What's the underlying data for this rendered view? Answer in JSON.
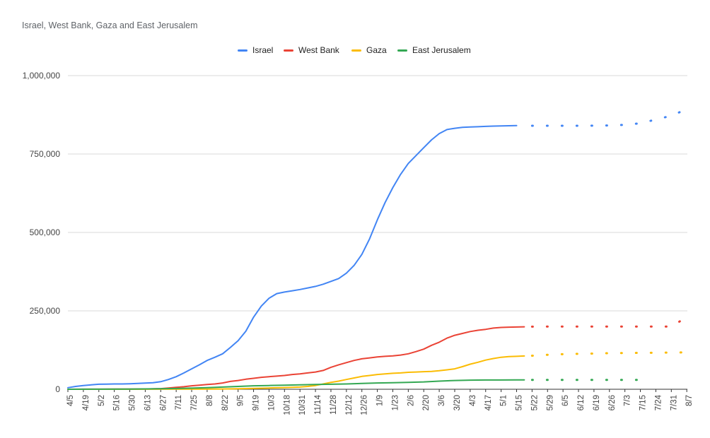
{
  "chart_data": {
    "type": "line",
    "title": "Israel, West Bank, Gaza and East Jerusalem",
    "ylim": [
      0,
      1000000
    ],
    "yticks": [
      "0",
      "250,000",
      "500,000",
      "750,000",
      "1,000,000"
    ],
    "ytick_values": [
      0,
      250000,
      500000,
      750000,
      1000000
    ],
    "grid": true,
    "legend_position": "top",
    "xticks": [
      "4/5",
      "4/19",
      "5/2",
      "5/16",
      "5/30",
      "6/13",
      "6/27",
      "7/11",
      "7/25",
      "8/8",
      "8/22",
      "9/5",
      "9/19",
      "10/3",
      "10/18",
      "10/31",
      "11/14",
      "11/28",
      "12/12",
      "12/26",
      "1/9",
      "1/23",
      "2/6",
      "2/20",
      "3/6",
      "3/20",
      "4/3",
      "4/17",
      "5/1",
      "5/15",
      "5/22",
      "5/29",
      "6/5",
      "6/12",
      "6/19",
      "6/26",
      "7/3",
      "7/15",
      "7/24",
      "7/31",
      "8/7"
    ],
    "series": [
      {
        "name": "Israel",
        "color": "#4285f4",
        "solid": [
          [
            0,
            5000
          ],
          [
            0.5,
            9000
          ],
          [
            1,
            12000
          ],
          [
            1.5,
            14000
          ],
          [
            2,
            16000
          ],
          [
            2.5,
            16500
          ],
          [
            3,
            17000
          ],
          [
            3.5,
            17000
          ],
          [
            4,
            17500
          ],
          [
            4.5,
            18500
          ],
          [
            5,
            19500
          ],
          [
            5.5,
            21000
          ],
          [
            6,
            24000
          ],
          [
            6.5,
            31000
          ],
          [
            7,
            40000
          ],
          [
            7.5,
            52000
          ],
          [
            8,
            65000
          ],
          [
            8.5,
            78000
          ],
          [
            9,
            92000
          ],
          [
            9.5,
            102000
          ],
          [
            10,
            113000
          ],
          [
            10.5,
            133000
          ],
          [
            11,
            155000
          ],
          [
            11.5,
            185000
          ],
          [
            12,
            230000
          ],
          [
            12.5,
            265000
          ],
          [
            13,
            290000
          ],
          [
            13.5,
            305000
          ],
          [
            14,
            310000
          ],
          [
            14.5,
            314000
          ],
          [
            15,
            318000
          ],
          [
            15.5,
            323000
          ],
          [
            16,
            328000
          ],
          [
            16.5,
            335000
          ],
          [
            17,
            344000
          ],
          [
            17.5,
            353000
          ],
          [
            18,
            370000
          ],
          [
            18.5,
            395000
          ],
          [
            19,
            430000
          ],
          [
            19.5,
            480000
          ],
          [
            20,
            540000
          ],
          [
            20.5,
            595000
          ],
          [
            21,
            643000
          ],
          [
            21.5,
            685000
          ],
          [
            22,
            720000
          ],
          [
            22.5,
            745000
          ],
          [
            23,
            770000
          ],
          [
            23.5,
            795000
          ],
          [
            24,
            815000
          ],
          [
            24.5,
            828000
          ],
          [
            25,
            832000
          ],
          [
            25.5,
            835000
          ],
          [
            26,
            836000
          ],
          [
            26.5,
            837000
          ],
          [
            27,
            838000
          ],
          [
            27.5,
            839000
          ],
          [
            28,
            839500
          ],
          [
            28.5,
            840000
          ],
          [
            29,
            840500
          ]
        ],
        "dashed": [
          [
            30,
            840000
          ],
          [
            31,
            840000
          ],
          [
            32,
            840000
          ],
          [
            33,
            840000
          ],
          [
            34,
            840500
          ],
          [
            35,
            841000
          ],
          [
            36,
            843000
          ],
          [
            37,
            848000
          ],
          [
            38,
            860000
          ],
          [
            39,
            872000
          ],
          [
            40,
            893000
          ]
        ]
      },
      {
        "name": "West Bank",
        "color": "#ea4335",
        "solid": [
          [
            0,
            0
          ],
          [
            1,
            200
          ],
          [
            2,
            300
          ],
          [
            3,
            500
          ],
          [
            4,
            700
          ],
          [
            5,
            1000
          ],
          [
            6,
            2000
          ],
          [
            6.5,
            4000
          ],
          [
            7,
            6000
          ],
          [
            7.5,
            8000
          ],
          [
            8,
            11000
          ],
          [
            8.5,
            13000
          ],
          [
            9,
            15000
          ],
          [
            9.5,
            17000
          ],
          [
            10,
            20000
          ],
          [
            10.5,
            25000
          ],
          [
            11,
            28000
          ],
          [
            11.5,
            32000
          ],
          [
            12,
            35000
          ],
          [
            12.5,
            38000
          ],
          [
            13,
            40000
          ],
          [
            13.5,
            42000
          ],
          [
            14,
            44000
          ],
          [
            14.5,
            47000
          ],
          [
            15,
            49000
          ],
          [
            15.5,
            52000
          ],
          [
            16,
            55000
          ],
          [
            16.5,
            60000
          ],
          [
            17,
            70000
          ],
          [
            17.5,
            78000
          ],
          [
            18,
            85000
          ],
          [
            18.5,
            92000
          ],
          [
            19,
            97000
          ],
          [
            19.5,
            100000
          ],
          [
            20,
            103000
          ],
          [
            20.5,
            105000
          ],
          [
            21,
            106500
          ],
          [
            21.5,
            109000
          ],
          [
            22,
            113000
          ],
          [
            22.5,
            120000
          ],
          [
            23,
            128000
          ],
          [
            23.5,
            140000
          ],
          [
            24,
            150000
          ],
          [
            24.5,
            163000
          ],
          [
            25,
            172000
          ],
          [
            25.5,
            178000
          ],
          [
            26,
            184000
          ],
          [
            26.5,
            188000
          ],
          [
            27,
            191000
          ],
          [
            27.5,
            195000
          ],
          [
            28,
            197000
          ],
          [
            28.5,
            198000
          ],
          [
            29,
            198500
          ],
          [
            29.5,
            199000
          ]
        ],
        "dashed": [
          [
            30,
            199500
          ],
          [
            31,
            200000
          ],
          [
            32,
            200000
          ],
          [
            33,
            200000
          ],
          [
            34,
            200000
          ],
          [
            35,
            200000
          ],
          [
            36,
            200000
          ],
          [
            37,
            200000
          ],
          [
            38,
            200000
          ],
          [
            39,
            200000
          ],
          [
            40,
            230000
          ]
        ]
      },
      {
        "name": "Gaza",
        "color": "#fbbc04",
        "solid": [
          [
            0,
            0
          ],
          [
            3,
            100
          ],
          [
            6,
            200
          ],
          [
            9,
            500
          ],
          [
            10,
            800
          ],
          [
            11,
            1500
          ],
          [
            12,
            3000
          ],
          [
            13,
            4000
          ],
          [
            14,
            5500
          ],
          [
            15,
            7000
          ],
          [
            15.5,
            9000
          ],
          [
            16,
            12000
          ],
          [
            16.5,
            17000
          ],
          [
            17,
            22000
          ],
          [
            17.5,
            26000
          ],
          [
            18,
            31000
          ],
          [
            18.5,
            36000
          ],
          [
            19,
            41000
          ],
          [
            19.5,
            44000
          ],
          [
            20,
            47000
          ],
          [
            20.5,
            49000
          ],
          [
            21,
            51000
          ],
          [
            21.5,
            52000
          ],
          [
            22,
            54000
          ],
          [
            22.5,
            55000
          ],
          [
            23,
            56000
          ],
          [
            23.5,
            57000
          ],
          [
            24,
            59000
          ],
          [
            24.5,
            62000
          ],
          [
            25,
            65000
          ],
          [
            25.5,
            72000
          ],
          [
            26,
            80000
          ],
          [
            26.5,
            86000
          ],
          [
            27,
            93000
          ],
          [
            27.5,
            98000
          ],
          [
            28,
            102000
          ],
          [
            28.5,
            104000
          ],
          [
            29,
            105000
          ],
          [
            29.5,
            106000
          ]
        ],
        "dashed": [
          [
            30,
            107000
          ],
          [
            31,
            110000
          ],
          [
            32,
            112000
          ],
          [
            33,
            113000
          ],
          [
            34,
            114000
          ],
          [
            35,
            115000
          ],
          [
            36,
            115500
          ],
          [
            37,
            116000
          ],
          [
            38,
            116500
          ],
          [
            39,
            117000
          ],
          [
            40,
            117500
          ]
        ]
      },
      {
        "name": "East Jerusalem",
        "color": "#34a853",
        "solid": [
          [
            0,
            0
          ],
          [
            2,
            300
          ],
          [
            4,
            600
          ],
          [
            6,
            1500
          ],
          [
            7,
            2500
          ],
          [
            8,
            3500
          ],
          [
            9,
            5000
          ],
          [
            10,
            7000
          ],
          [
            11,
            9000
          ],
          [
            12,
            11000
          ],
          [
            13,
            12000
          ],
          [
            14,
            13000
          ],
          [
            15,
            14000
          ],
          [
            16,
            15000
          ],
          [
            17,
            16000
          ],
          [
            18,
            17000
          ],
          [
            19,
            18500
          ],
          [
            20,
            20000
          ],
          [
            21,
            21000
          ],
          [
            22,
            22000
          ],
          [
            23,
            23500
          ],
          [
            24,
            26000
          ],
          [
            25,
            28000
          ],
          [
            26,
            29000
          ],
          [
            27,
            29500
          ],
          [
            28,
            29500
          ],
          [
            29,
            29700
          ],
          [
            29.5,
            29800
          ]
        ],
        "dashed": [
          [
            30,
            29800
          ],
          [
            31,
            29800
          ],
          [
            32,
            29800
          ],
          [
            33,
            29800
          ],
          [
            34,
            29800
          ],
          [
            35,
            29800
          ],
          [
            36,
            29800
          ],
          [
            37,
            29800
          ]
        ]
      }
    ]
  }
}
